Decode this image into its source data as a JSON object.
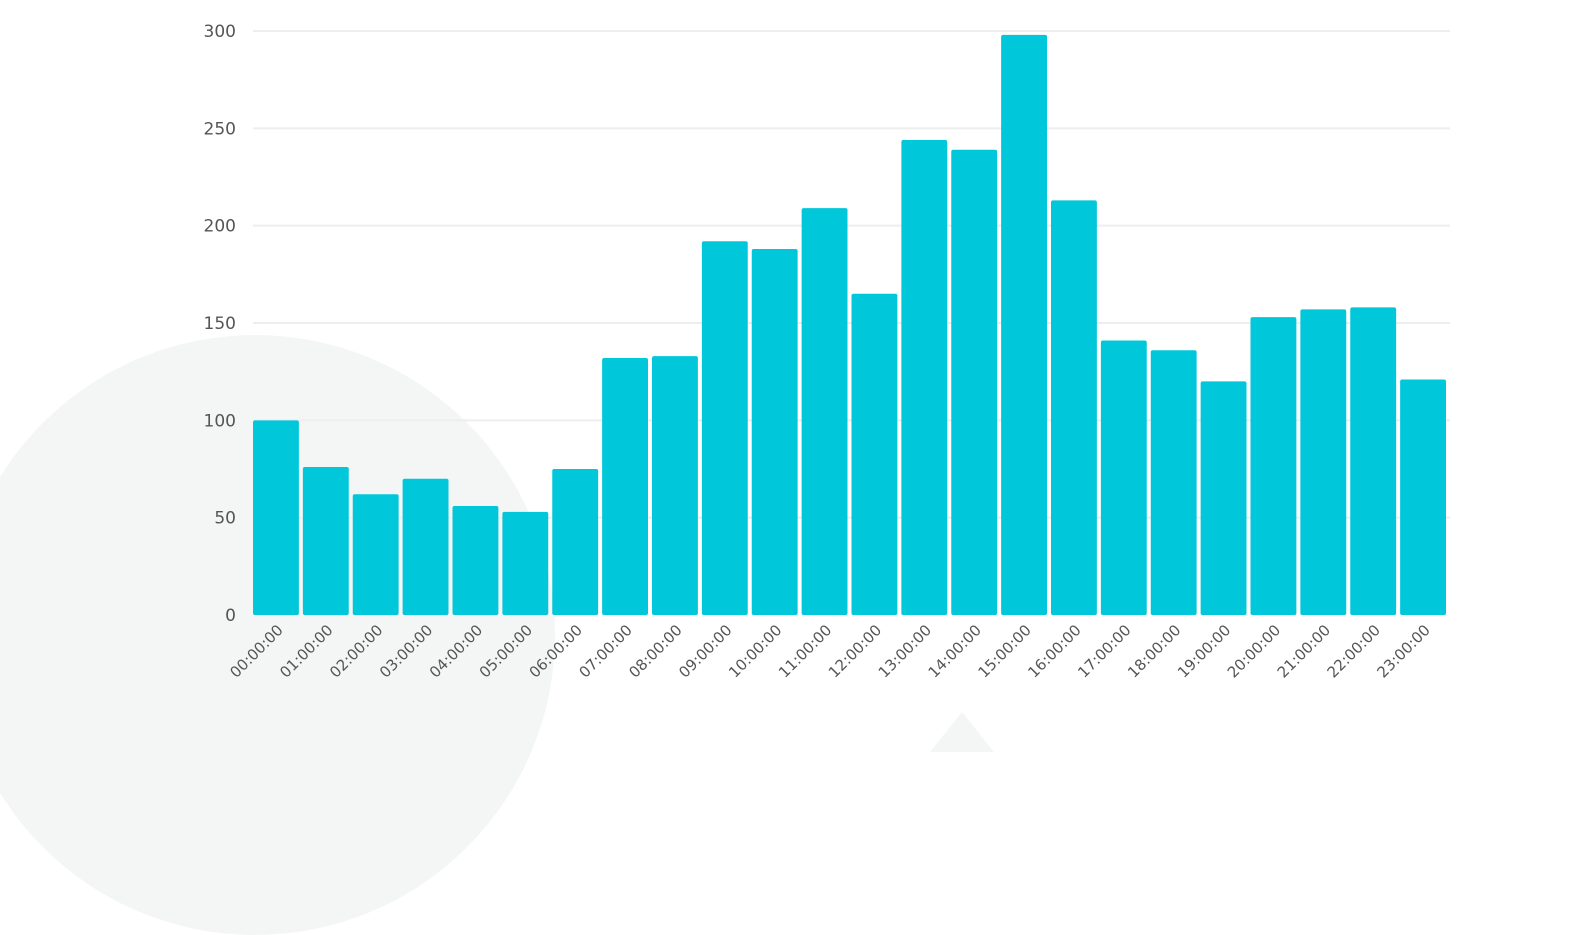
{
  "chart_data": {
    "type": "bar",
    "title": "",
    "xlabel": "",
    "ylabel": "",
    "ylim": [
      0,
      300
    ],
    "yticks": [
      0,
      50,
      100,
      150,
      200,
      250,
      300
    ],
    "grid": true,
    "legend": null,
    "bar_color": "#00C8DA",
    "categories": [
      "00:00:00",
      "01:00:00",
      "02:00:00",
      "03:00:00",
      "04:00:00",
      "05:00:00",
      "06:00:00",
      "07:00:00",
      "08:00:00",
      "09:00:00",
      "10:00:00",
      "11:00:00",
      "12:00:00",
      "13:00:00",
      "14:00:00",
      "15:00:00",
      "16:00:00",
      "17:00:00",
      "18:00:00",
      "19:00:00",
      "20:00:00",
      "21:00:00",
      "22:00:00",
      "23:00:00"
    ],
    "values": [
      100,
      76,
      62,
      70,
      56,
      53,
      75,
      132,
      133,
      192,
      188,
      209,
      165,
      244,
      239,
      298,
      213,
      141,
      136,
      120,
      153,
      157,
      158,
      121
    ]
  }
}
